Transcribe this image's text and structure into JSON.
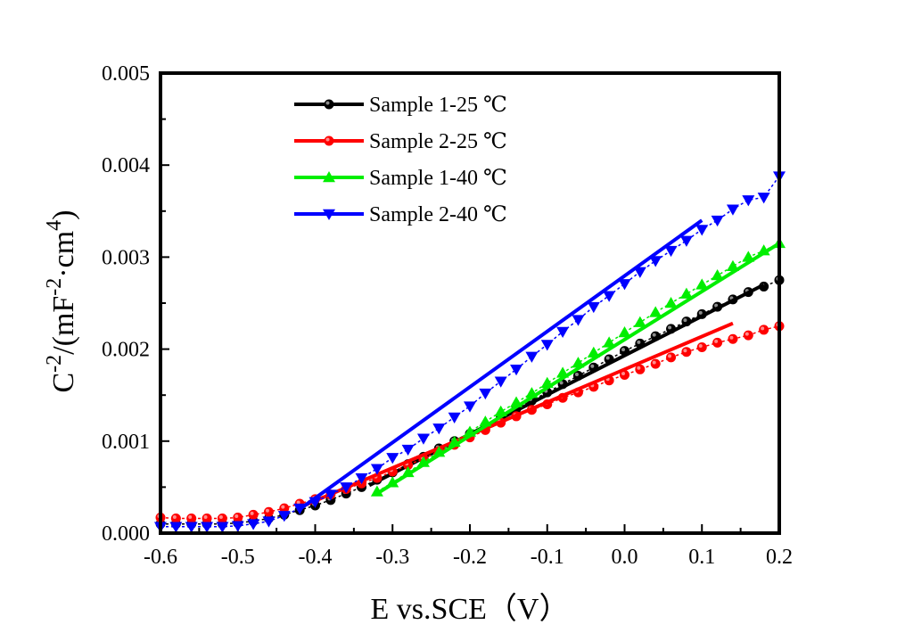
{
  "chart_data": {
    "type": "line",
    "title": "",
    "xlabel": "E vs.SCE（V）",
    "ylabel_base": "C",
    "ylabel_exp": "-2",
    "ylabel_paren": "/(mF",
    "ylabel_unit_exp1": "-2",
    "ylabel_mid": "·cm",
    "ylabel_unit_exp2": "4",
    "ylabel_close": ")",
    "xlim": [
      -0.6,
      0.2
    ],
    "ylim": [
      0,
      0.005
    ],
    "x_ticks": [
      -0.6,
      -0.5,
      -0.4,
      -0.3,
      -0.2,
      -0.1,
      0.0,
      0.1,
      0.2
    ],
    "x_tick_labels": [
      "-0.6",
      "-0.5",
      "-0.4",
      "-0.3",
      "-0.2",
      "-0.1",
      "0.0",
      "0.1",
      "0.2"
    ],
    "y_ticks": [
      0,
      0.001,
      0.002,
      0.003,
      0.004,
      0.005
    ],
    "y_tick_labels": [
      "0.000",
      "0.001",
      "0.002",
      "0.003",
      "0.004",
      "0.005"
    ],
    "grid": false,
    "legend_position": "top-center",
    "series": [
      {
        "name": "Sample 1-25 ℃",
        "color": "#000000",
        "marker": "circle",
        "x": [
          -0.6,
          -0.58,
          -0.56,
          -0.54,
          -0.52,
          -0.5,
          -0.48,
          -0.46,
          -0.44,
          -0.42,
          -0.4,
          -0.38,
          -0.36,
          -0.34,
          -0.32,
          -0.3,
          -0.28,
          -0.26,
          -0.24,
          -0.22,
          -0.2,
          -0.18,
          -0.16,
          -0.14,
          -0.12,
          -0.1,
          -0.08,
          -0.06,
          -0.04,
          -0.02,
          0.0,
          0.02,
          0.04,
          0.06,
          0.08,
          0.1,
          0.12,
          0.14,
          0.16,
          0.18,
          0.2
        ],
        "y": [
          0.0001,
          0.0001,
          0.0001,
          0.0001,
          0.0001,
          0.00011,
          0.00013,
          0.00016,
          0.0002,
          0.00025,
          0.0003,
          0.00036,
          0.00043,
          0.0005,
          0.00058,
          0.00066,
          0.00075,
          0.00083,
          0.00092,
          0.001,
          0.00108,
          0.00117,
          0.00126,
          0.00135,
          0.00144,
          0.00153,
          0.00162,
          0.00171,
          0.0018,
          0.00189,
          0.00198,
          0.00206,
          0.00214,
          0.00222,
          0.0023,
          0.00238,
          0.00246,
          0.00254,
          0.00262,
          0.00268,
          0.00275
        ],
        "fit": {
          "x": [
            -0.33,
            0.18
          ],
          "y": [
            0.00052,
            0.0027
          ]
        }
      },
      {
        "name": "Sample 2-25 ℃",
        "color": "#ff0000",
        "marker": "circle",
        "x": [
          -0.6,
          -0.58,
          -0.56,
          -0.54,
          -0.52,
          -0.5,
          -0.48,
          -0.46,
          -0.44,
          -0.42,
          -0.4,
          -0.38,
          -0.36,
          -0.34,
          -0.32,
          -0.3,
          -0.28,
          -0.26,
          -0.24,
          -0.22,
          -0.2,
          -0.18,
          -0.16,
          -0.14,
          -0.12,
          -0.1,
          -0.08,
          -0.06,
          -0.04,
          -0.02,
          0.0,
          0.02,
          0.04,
          0.06,
          0.08,
          0.1,
          0.12,
          0.14,
          0.16,
          0.18,
          0.2
        ],
        "y": [
          0.00017,
          0.00016,
          0.00016,
          0.00016,
          0.00016,
          0.00017,
          0.0002,
          0.00023,
          0.00027,
          0.00032,
          0.00037,
          0.00042,
          0.00048,
          0.00054,
          0.0006,
          0.00067,
          0.00074,
          0.00081,
          0.00089,
          0.00096,
          0.00104,
          0.00112,
          0.0012,
          0.00127,
          0.00134,
          0.0014,
          0.00147,
          0.00153,
          0.00159,
          0.00166,
          0.00172,
          0.00178,
          0.00184,
          0.00191,
          0.00197,
          0.00202,
          0.00207,
          0.00211,
          0.00215,
          0.00221,
          0.00225
        ],
        "fit": {
          "x": [
            -0.42,
            0.14
          ],
          "y": [
            0.00028,
            0.00228
          ]
        }
      },
      {
        "name": "Sample 1-40 ℃",
        "color": "#00ee00",
        "marker": "triangle-up",
        "x": [
          -0.32,
          -0.3,
          -0.28,
          -0.26,
          -0.24,
          -0.22,
          -0.2,
          -0.18,
          -0.16,
          -0.14,
          -0.12,
          -0.1,
          -0.08,
          -0.06,
          -0.04,
          -0.02,
          0.0,
          0.02,
          0.04,
          0.06,
          0.08,
          0.1,
          0.12,
          0.14,
          0.16,
          0.18,
          0.2
        ],
        "y": [
          0.00045,
          0.00055,
          0.00066,
          0.00077,
          0.00088,
          0.00099,
          0.0011,
          0.00121,
          0.00132,
          0.00142,
          0.00152,
          0.00163,
          0.00174,
          0.00185,
          0.00196,
          0.00207,
          0.00218,
          0.00229,
          0.0024,
          0.0025,
          0.0026,
          0.0027,
          0.0028,
          0.0029,
          0.003,
          0.00307,
          0.00315
        ],
        "fit": {
          "x": [
            -0.32,
            0.2
          ],
          "y": [
            0.00043,
            0.00315
          ]
        }
      },
      {
        "name": "Sample 2-40 ℃",
        "color": "#0000ff",
        "marker": "triangle-down",
        "x": [
          -0.6,
          -0.58,
          -0.56,
          -0.54,
          -0.52,
          -0.5,
          -0.48,
          -0.46,
          -0.44,
          -0.42,
          -0.4,
          -0.38,
          -0.36,
          -0.34,
          -0.32,
          -0.3,
          -0.28,
          -0.26,
          -0.24,
          -0.22,
          -0.2,
          -0.18,
          -0.16,
          -0.14,
          -0.12,
          -0.1,
          -0.08,
          -0.06,
          -0.04,
          -0.02,
          0.0,
          0.02,
          0.04,
          0.06,
          0.08,
          0.1,
          0.12,
          0.14,
          0.16,
          0.18,
          0.2
        ],
        "y": [
          7e-05,
          7e-05,
          7e-05,
          7e-05,
          7e-05,
          8e-05,
          0.0001,
          0.00013,
          0.00019,
          0.00027,
          0.00034,
          0.00042,
          0.0005,
          0.0006,
          0.0007,
          0.00082,
          0.00091,
          0.00103,
          0.00114,
          0.00126,
          0.00138,
          0.00152,
          0.00165,
          0.00178,
          0.00192,
          0.00205,
          0.00219,
          0.00232,
          0.00246,
          0.00258,
          0.00271,
          0.00284,
          0.00296,
          0.00307,
          0.00318,
          0.0033,
          0.0034,
          0.00352,
          0.00362,
          0.00365,
          0.00388
        ],
        "fit": {
          "x": [
            -0.42,
            0.1
          ],
          "y": [
            0.00026,
            0.0034
          ]
        }
      }
    ]
  }
}
